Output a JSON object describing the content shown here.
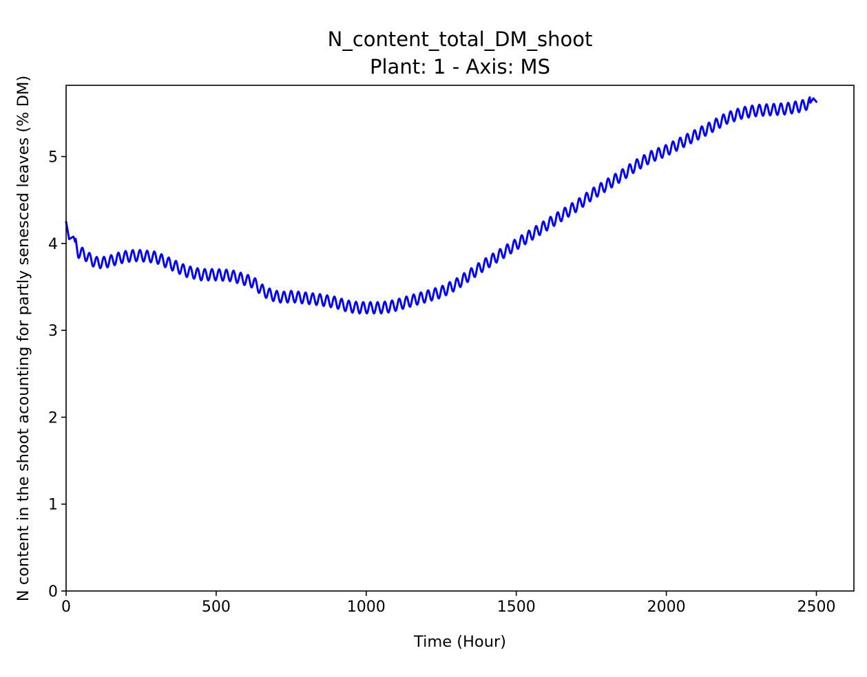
{
  "chart_data": {
    "type": "line",
    "title": "N_content_total_DM_shoot",
    "subtitle": "Plant: 1 - Axis: MS",
    "xlabel": "Time (Hour)",
    "ylabel": "N content in the shoot acounting for partly senesced leaves (% DM)",
    "xlim": [
      0,
      2625
    ],
    "ylim": [
      0,
      5.82
    ],
    "xticks": [
      0,
      500,
      1000,
      1500,
      2000,
      2500
    ],
    "yticks": [
      0,
      1,
      2,
      3,
      4,
      5
    ],
    "grid": false,
    "legend": "none",
    "line_color": "#0000ff",
    "series": [
      {
        "x": [
          0,
          10,
          25,
          40,
          60,
          80,
          100,
          125,
          150,
          175,
          200,
          225,
          250,
          275,
          300,
          325,
          350,
          375,
          400,
          450,
          500,
          550,
          600,
          625,
          650,
          675,
          700,
          725,
          750,
          775,
          800,
          850,
          900,
          925,
          950,
          975,
          1000,
          1025,
          1050,
          1075,
          1100,
          1150,
          1200,
          1250,
          1300,
          1350,
          1400,
          1450,
          1500,
          1550,
          1600,
          1650,
          1700,
          1750,
          1800,
          1850,
          1900,
          1950,
          2000,
          2050,
          2100,
          2150,
          2200,
          2250,
          2300,
          2350,
          2400,
          2450,
          2480,
          2490,
          2500
        ],
        "y": [
          4.25,
          4.05,
          4.08,
          3.9,
          3.88,
          3.82,
          3.78,
          3.78,
          3.8,
          3.83,
          3.85,
          3.86,
          3.86,
          3.85,
          3.84,
          3.8,
          3.76,
          3.72,
          3.68,
          3.64,
          3.64,
          3.63,
          3.58,
          3.55,
          3.47,
          3.42,
          3.39,
          3.38,
          3.39,
          3.38,
          3.37,
          3.35,
          3.32,
          3.29,
          3.27,
          3.26,
          3.26,
          3.26,
          3.26,
          3.27,
          3.29,
          3.34,
          3.39,
          3.44,
          3.53,
          3.65,
          3.77,
          3.88,
          3.99,
          4.1,
          4.21,
          4.32,
          4.43,
          4.56,
          4.67,
          4.78,
          4.9,
          5.0,
          5.07,
          5.16,
          5.25,
          5.34,
          5.44,
          5.5,
          5.53,
          5.54,
          5.55,
          5.58,
          5.62,
          5.67,
          5.63
        ]
      }
    ]
  }
}
